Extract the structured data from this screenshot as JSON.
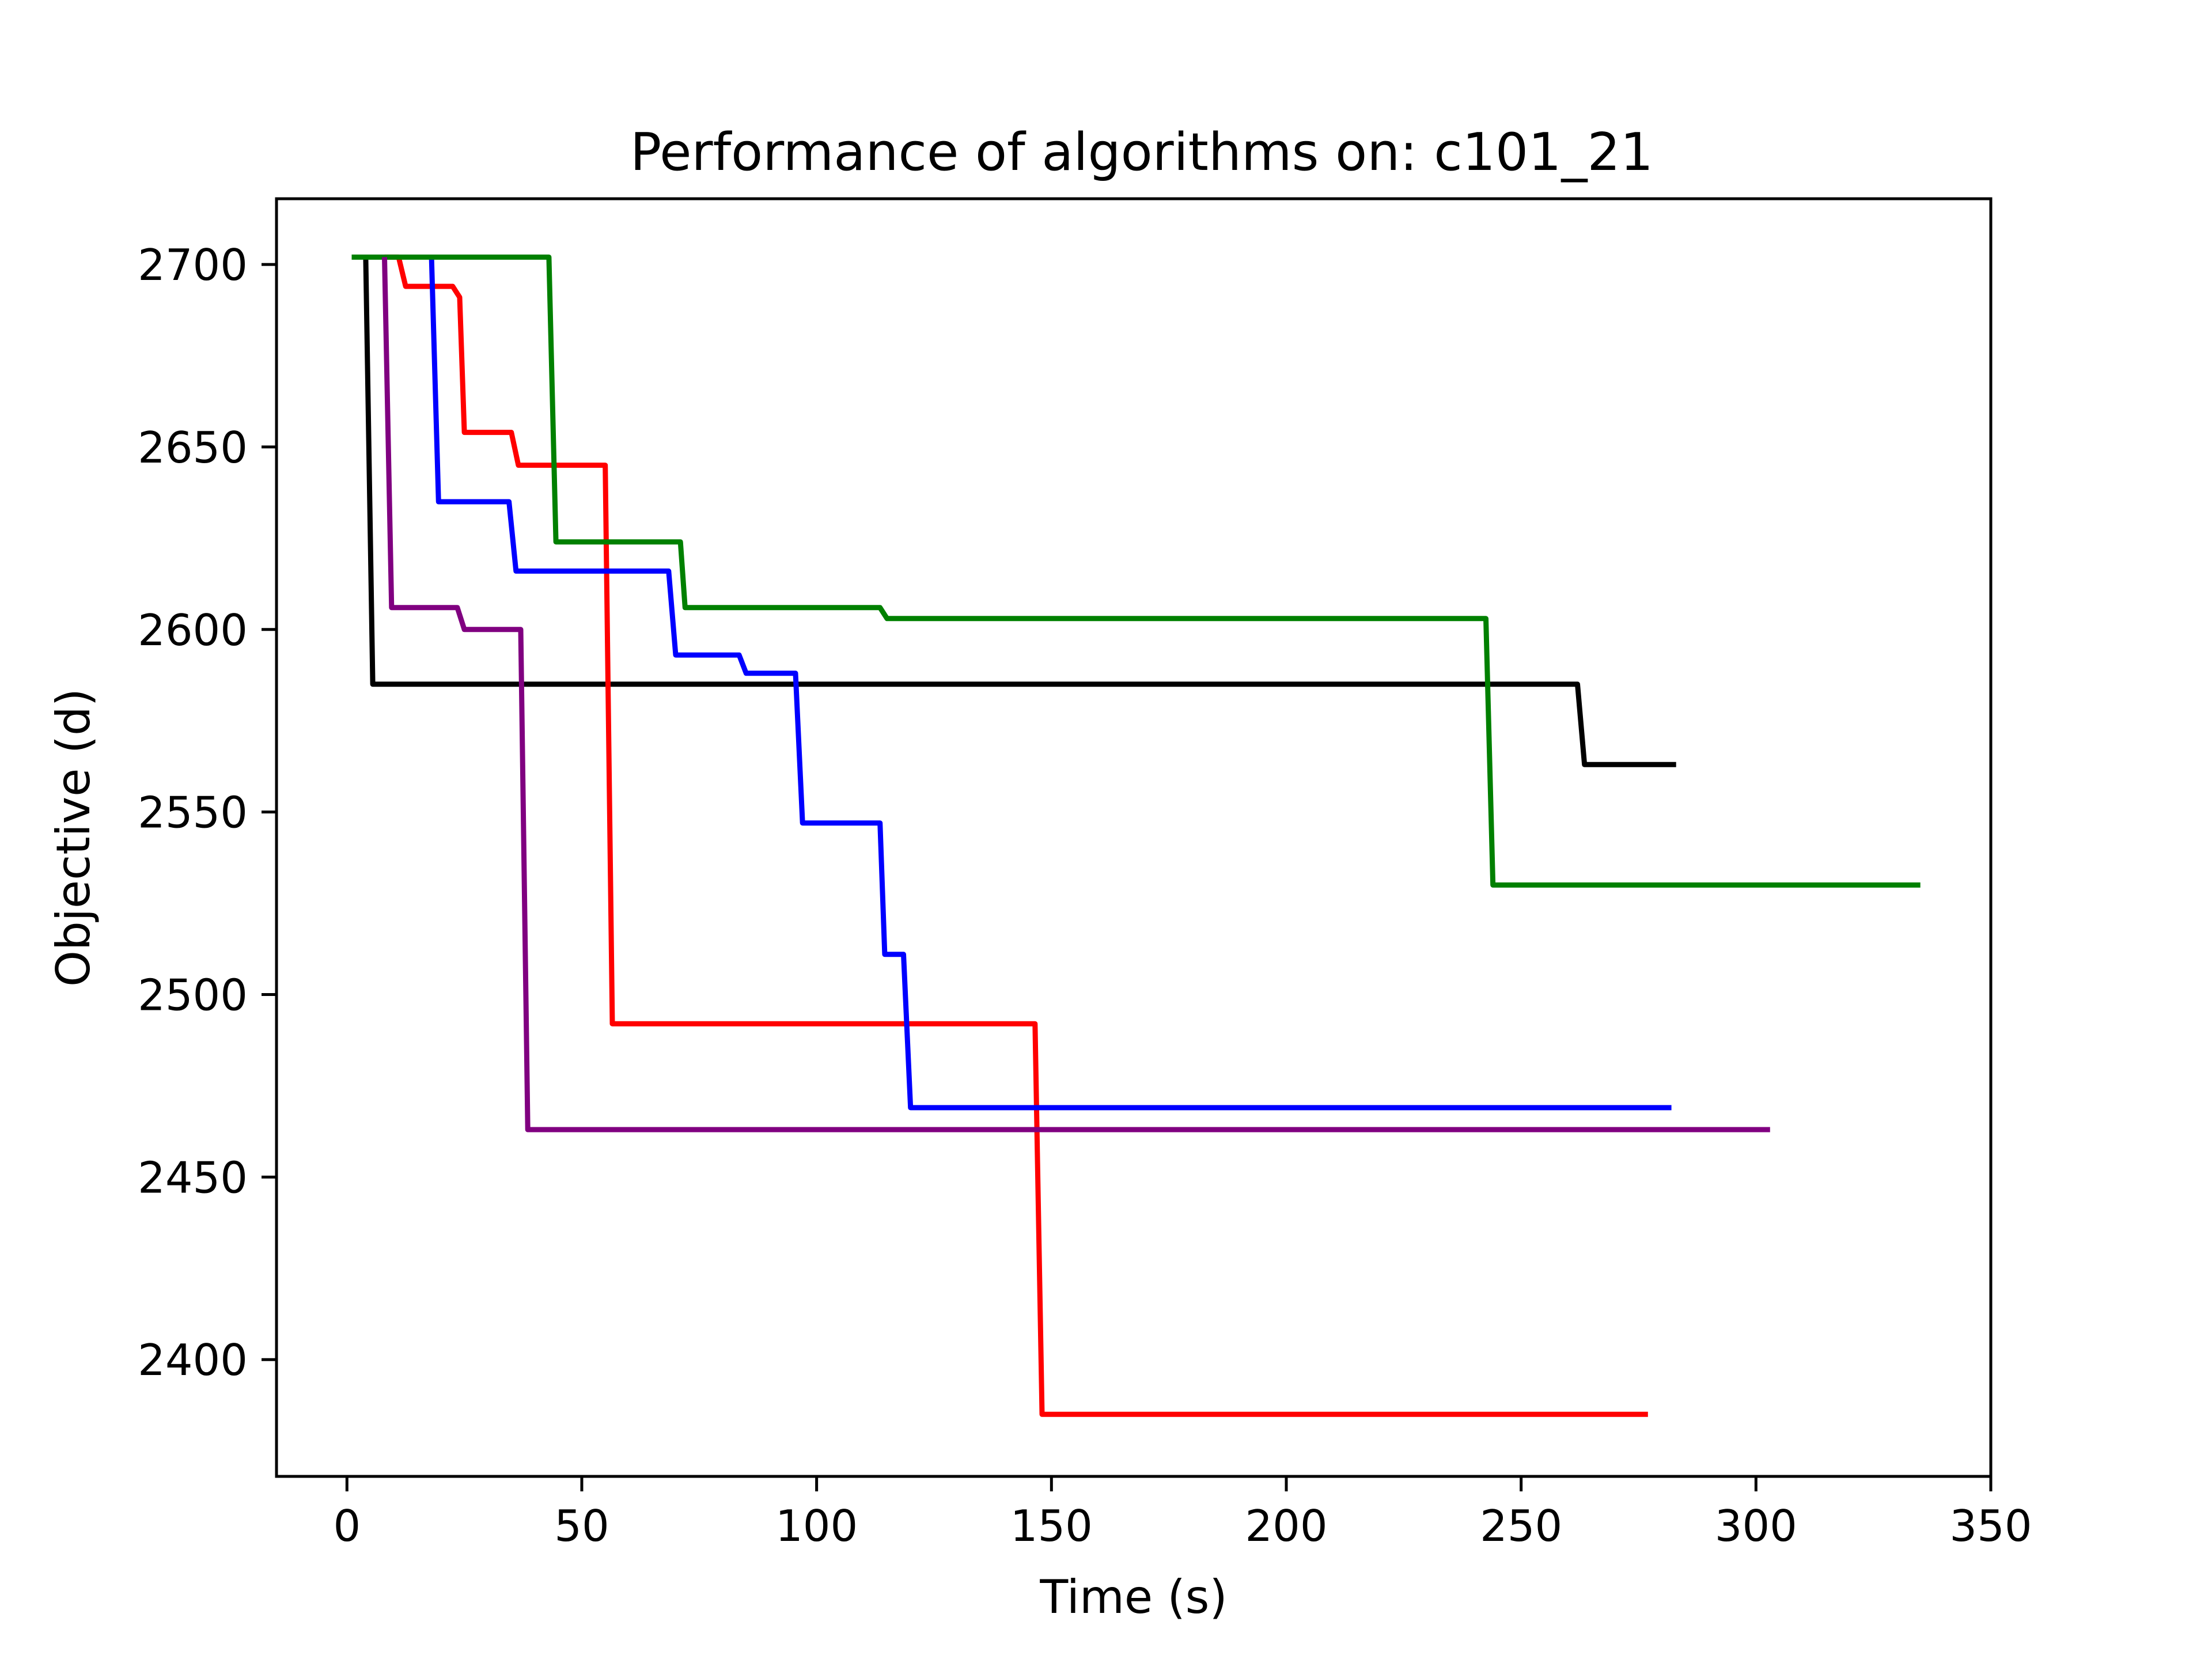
{
  "chart_data": {
    "type": "line",
    "title": "Performance of algorithms on: c101_21",
    "xlabel": "Time (s)",
    "ylabel": "Objective (d)",
    "xlim": [
      -15,
      350
    ],
    "ylim": [
      2368,
      2718
    ],
    "xticks": [
      0,
      50,
      100,
      150,
      200,
      250,
      300,
      350
    ],
    "yticks": [
      2400,
      2450,
      2500,
      2550,
      2600,
      2650,
      2700
    ],
    "grid": false,
    "legend": "none",
    "series": [
      {
        "color": "#000000",
        "points": [
          [
            4,
            2702
          ],
          [
            5.5,
            2585
          ],
          [
            262,
            2585
          ],
          [
            263.5,
            2563
          ],
          [
            283,
            2563
          ]
        ]
      },
      {
        "color": "#ff0000",
        "points": [
          [
            8,
            2702
          ],
          [
            11,
            2702
          ],
          [
            12.5,
            2694
          ],
          [
            22.5,
            2694
          ],
          [
            24,
            2691
          ],
          [
            25,
            2654
          ],
          [
            35,
            2654
          ],
          [
            36.5,
            2645
          ],
          [
            55,
            2645
          ],
          [
            56.5,
            2492
          ],
          [
            146.5,
            2492
          ],
          [
            148,
            2385
          ],
          [
            277,
            2385
          ]
        ]
      },
      {
        "color": "#0000ff",
        "points": [
          [
            18,
            2702
          ],
          [
            19.5,
            2635
          ],
          [
            34.5,
            2635
          ],
          [
            36,
            2616
          ],
          [
            68.5,
            2616
          ],
          [
            70,
            2593
          ],
          [
            83.5,
            2593
          ],
          [
            85,
            2588
          ],
          [
            95.5,
            2588
          ],
          [
            97,
            2547
          ],
          [
            113.5,
            2547
          ],
          [
            114.5,
            2511
          ],
          [
            118.5,
            2511
          ],
          [
            120,
            2469
          ],
          [
            282,
            2469
          ]
        ]
      },
      {
        "color": "#008000",
        "points": [
          [
            1,
            2702
          ],
          [
            43,
            2702
          ],
          [
            44.5,
            2624
          ],
          [
            71,
            2624
          ],
          [
            72,
            2606
          ],
          [
            113.5,
            2606
          ],
          [
            115,
            2603
          ],
          [
            242.5,
            2603
          ],
          [
            244,
            2530
          ],
          [
            335,
            2530
          ]
        ]
      },
      {
        "color": "#800080",
        "points": [
          [
            8,
            2702
          ],
          [
            9.5,
            2606
          ],
          [
            23.5,
            2606
          ],
          [
            25,
            2600
          ],
          [
            37,
            2600
          ],
          [
            38.5,
            2463
          ],
          [
            303,
            2463
          ]
        ]
      }
    ]
  }
}
